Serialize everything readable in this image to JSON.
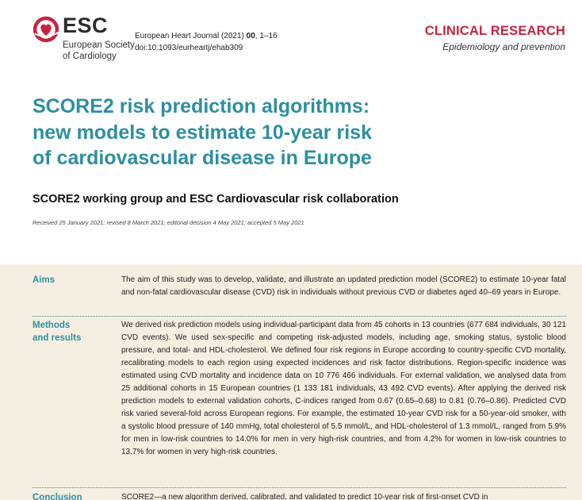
{
  "header": {
    "logo_icon": "esc-heart-logo-icon",
    "logo_abbr": "ESC",
    "logo_name_line1": "European Society",
    "logo_name_line2": "of Cardiology",
    "journal_prefix": "European Heart Journal (2021) ",
    "journal_volume": "00",
    "journal_pages": ", 1–16",
    "doi": "doi:10.1093/eurheartj/ehab309",
    "section_label": "CLINICAL RESEARCH",
    "subsection": "Epidemiology and prevention",
    "accent_color": "#c9243f"
  },
  "article": {
    "title_line1": "SCORE2 risk prediction algorithms:",
    "title_line2": "new models to estimate 10-year risk",
    "title_line3": "of cardiovascular disease in Europe",
    "authors": "SCORE2 working group and ESC Cardiovascular risk collaboration",
    "received": "Received 25 January 2021; revised 8 March 2021; editorial decision 4 May 2021; accepted 5 May 2021",
    "title_color": "#2d8fa0"
  },
  "abstract": {
    "background_color": "#f5efe1",
    "aims_label": "Aims",
    "aims_text": "The aim of this study was to develop, validate, and illustrate an updated prediction model (SCORE2) to estimate 10-year fatal and non-fatal cardiovascular disease (CVD) risk in individuals without previous CVD or diabetes aged 40–69 years in Europe.",
    "methods_label": "Methods\nand results",
    "methods_text": "We derived risk prediction models using individual-participant data from 45 cohorts in 13 countries (677 684 individuals, 30 121 CVD events). We used sex-specific and competing risk-adjusted models, including age, smoking status, systolic blood pressure, and total- and HDL-cholesterol. We defined four risk regions in Europe according to country-specific CVD mortality, recalibrating models to each region using expected incidences and risk factor distributions. Region-specific incidence was estimated using CVD mortality and incidence data on 10 776 466 individuals. For external validation, we analysed data from 25 additional cohorts in 15 European countries (1 133 181 individuals, 43 492 CVD events). After applying the derived risk prediction models to external validation cohorts, C-indices ranged from 0.67 (0.65–0.68) to 0.81 (0.76–0.86). Predicted CVD risk varied several-fold across European regions. For example, the estimated 10-year CVD risk for a 50-year-old smoker, with a systolic blood pressure of 140 mmHg, total cholesterol of 5.5 mmol/L, and HDL-cholesterol of 1.3 mmol/L, ranged from 5.9% for men in low-risk countries to 14.0% for men in very high-risk countries, and from 4.2% for women in low-risk countries to 13.7% for women in very high-risk countries.",
    "conclusion_label": "Conclusion",
    "conclusion_text": "SCORE2—a new algorithm derived, calibrated, and validated to predict 10-year risk of first-onset CVD in"
  }
}
